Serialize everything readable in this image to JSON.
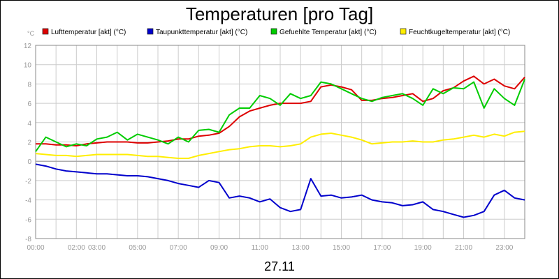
{
  "chart_data": {
    "type": "line",
    "title": "Temperaturen [pro Tag]",
    "unit_label": "°C",
    "date_label": "27.11",
    "ylim": [
      -8,
      12
    ],
    "yticks": [
      -8,
      -6,
      -4,
      -2,
      0,
      2,
      4,
      6,
      8,
      10,
      12
    ],
    "xlim": [
      0,
      24
    ],
    "x_tick_labels": [
      {
        "x": 0,
        "label": "00:00"
      },
      {
        "x": 2,
        "label": "02:00"
      },
      {
        "x": 3,
        "label": "03:00"
      },
      {
        "x": 5,
        "label": "05:00"
      },
      {
        "x": 7,
        "label": "07:00"
      },
      {
        "x": 9,
        "label": "09:00"
      },
      {
        "x": 11,
        "label": "11:00"
      },
      {
        "x": 13,
        "label": "13:00"
      },
      {
        "x": 15,
        "label": "15:00"
      },
      {
        "x": 17,
        "label": "17:00"
      },
      {
        "x": 19,
        "label": "19:00"
      },
      {
        "x": 21,
        "label": "21:00"
      },
      {
        "x": 23,
        "label": "23:00"
      }
    ],
    "grid": true,
    "legend_position": "top",
    "series": [
      {
        "name": "Lufttemperatur [akt] (°C)",
        "color": "#dd0000",
        "x": [
          0,
          0.5,
          1,
          1.5,
          2,
          2.5,
          3,
          3.5,
          4,
          4.5,
          5,
          5.5,
          6,
          6.5,
          7,
          7.5,
          8,
          8.5,
          9,
          9.5,
          10,
          10.5,
          11,
          11.5,
          12,
          12.5,
          13,
          13.5,
          14,
          14.5,
          15,
          15.5,
          16,
          16.5,
          17,
          17.5,
          18,
          18.5,
          19,
          19.5,
          20,
          20.5,
          21,
          21.5,
          22,
          22.5,
          23,
          23.5,
          24
        ],
        "values": [
          1.8,
          1.8,
          1.7,
          1.7,
          1.6,
          1.8,
          1.9,
          2.0,
          2.0,
          2.0,
          1.9,
          1.9,
          2.0,
          2.1,
          2.3,
          2.3,
          2.6,
          2.7,
          2.9,
          3.6,
          4.6,
          5.2,
          5.5,
          5.8,
          6.0,
          6.0,
          6.0,
          6.2,
          7.7,
          7.9,
          7.7,
          7.4,
          6.3,
          6.3,
          6.5,
          6.6,
          6.8,
          7.0,
          6.2,
          6.5,
          7.3,
          7.6,
          8.3,
          8.8,
          8.0,
          8.5,
          7.8,
          7.5,
          8.7
        ]
      },
      {
        "name": "Taupunkttemperatur [akt] (°C)",
        "color": "#0000cc",
        "x": [
          0,
          0.5,
          1,
          1.5,
          2,
          2.5,
          3,
          3.5,
          4,
          4.5,
          5,
          5.5,
          6,
          6.5,
          7,
          7.5,
          8,
          8.5,
          9,
          9.5,
          10,
          10.5,
          11,
          11.5,
          12,
          12.5,
          13,
          13.5,
          14,
          14.5,
          15,
          15.5,
          16,
          16.5,
          17,
          17.5,
          18,
          18.5,
          19,
          19.5,
          20,
          20.5,
          21,
          21.5,
          22,
          22.5,
          23,
          23.5,
          24
        ],
        "values": [
          -0.3,
          -0.5,
          -0.8,
          -1.0,
          -1.1,
          -1.2,
          -1.3,
          -1.3,
          -1.4,
          -1.5,
          -1.5,
          -1.6,
          -1.8,
          -2.0,
          -2.3,
          -2.5,
          -2.7,
          -2.0,
          -2.2,
          -3.8,
          -3.6,
          -3.8,
          -4.2,
          -3.9,
          -4.8,
          -5.2,
          -5.0,
          -1.8,
          -3.6,
          -3.5,
          -3.8,
          -3.7,
          -3.5,
          -4.0,
          -4.2,
          -4.3,
          -4.6,
          -4.5,
          -4.2,
          -5.0,
          -5.2,
          -5.5,
          -5.8,
          -5.6,
          -5.2,
          -3.5,
          -3.0,
          -3.8,
          -4.0
        ]
      },
      {
        "name": "Gefuehlte Temperatur [akt] (°C)",
        "color": "#00cc00",
        "x": [
          0,
          0.5,
          1,
          1.5,
          2,
          2.5,
          3,
          3.5,
          4,
          4.5,
          5,
          5.5,
          6,
          6.5,
          7,
          7.5,
          8,
          8.5,
          9,
          9.5,
          10,
          10.5,
          11,
          11.5,
          12,
          12.5,
          13,
          13.5,
          14,
          14.5,
          15,
          15.5,
          16,
          16.5,
          17,
          17.5,
          18,
          18.5,
          19,
          19.5,
          20,
          20.5,
          21,
          21.5,
          22,
          22.5,
          23,
          23.5,
          24
        ],
        "values": [
          1.0,
          2.5,
          2.0,
          1.5,
          1.8,
          1.6,
          2.3,
          2.5,
          3.0,
          2.2,
          2.8,
          2.5,
          2.2,
          1.8,
          2.5,
          2.0,
          3.2,
          3.3,
          3.0,
          4.8,
          5.5,
          5.5,
          6.8,
          6.5,
          5.8,
          7.0,
          6.5,
          6.8,
          8.2,
          8.0,
          7.5,
          7.0,
          6.5,
          6.2,
          6.6,
          6.8,
          7.0,
          6.5,
          5.8,
          7.5,
          7.0,
          7.6,
          7.5,
          8.2,
          5.5,
          7.5,
          6.5,
          5.8,
          8.5
        ]
      },
      {
        "name": "Feuchtkugeltemperatur [akt] (°C)",
        "color": "#ffee00",
        "x": [
          0,
          0.5,
          1,
          1.5,
          2,
          2.5,
          3,
          3.5,
          4,
          4.5,
          5,
          5.5,
          6,
          6.5,
          7,
          7.5,
          8,
          8.5,
          9,
          9.5,
          10,
          10.5,
          11,
          11.5,
          12,
          12.5,
          13,
          13.5,
          14,
          14.5,
          15,
          15.5,
          16,
          16.5,
          17,
          17.5,
          18,
          18.5,
          19,
          19.5,
          20,
          20.5,
          21,
          21.5,
          22,
          22.5,
          23,
          23.5,
          24
        ],
        "values": [
          0.8,
          0.7,
          0.6,
          0.6,
          0.5,
          0.6,
          0.7,
          0.7,
          0.7,
          0.7,
          0.6,
          0.5,
          0.5,
          0.4,
          0.3,
          0.3,
          0.6,
          0.8,
          1.0,
          1.2,
          1.3,
          1.5,
          1.6,
          1.6,
          1.5,
          1.6,
          1.8,
          2.5,
          2.8,
          2.9,
          2.7,
          2.5,
          2.2,
          1.8,
          1.9,
          2.0,
          2.0,
          2.1,
          2.0,
          2.0,
          2.2,
          2.3,
          2.5,
          2.7,
          2.5,
          2.8,
          2.6,
          3.0,
          3.1
        ]
      }
    ]
  }
}
